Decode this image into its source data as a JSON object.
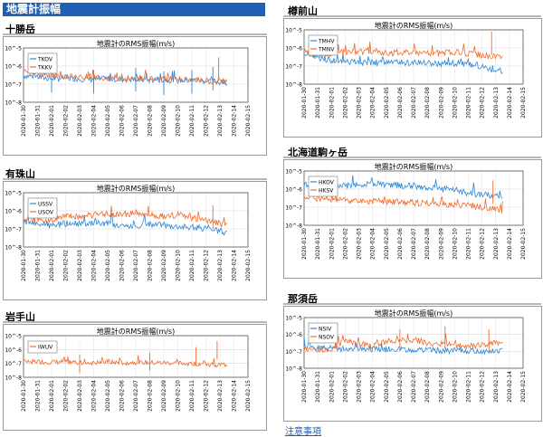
{
  "page": {
    "title": "地震計振幅",
    "note_link": "注意事項"
  },
  "colors": {
    "title_bg": "#1f5fb5",
    "series_a": "#2c86d8",
    "series_b": "#f26a2a"
  },
  "date_ticks": [
    "2020-01-30",
    "2020-01-31",
    "2020-02-01",
    "2020-02-02",
    "2020-02-03",
    "2020-02-04",
    "2020-02-05",
    "2020-02-06",
    "2020-02-07",
    "2020-02-08",
    "2020-02-09",
    "2020-02-10",
    "2020-02-11",
    "2020-02-12",
    "2020-02-13",
    "2020-02-14",
    "2020-02-15"
  ],
  "y_ticks": [
    "10^-5",
    "10^-6",
    "10^-7",
    "10^-8"
  ],
  "panels": [
    {
      "name": "十勝岳",
      "chart_title": "地震計のRMS振幅(m/s)",
      "legend": [
        "TKOV",
        "TKKV"
      ],
      "extra_a": true
    },
    {
      "name": "樽前山",
      "chart_title": "地震計のRMS振幅(m/s)",
      "legend": [
        "TMHV",
        "TMNV"
      ]
    },
    {
      "name": "有珠山",
      "chart_title": "地震計のRMS振幅(m/s)",
      "legend": [
        "USSV",
        "USOV"
      ]
    },
    {
      "name": "北海道駒ヶ岳",
      "chart_title": "地震計のRMS振幅(m/s)",
      "legend": [
        "HKOV",
        "HKSV"
      ]
    },
    {
      "name": "岩手山",
      "chart_title": "地震計のRMS振幅(m/s)",
      "legend": [
        "IWUV"
      ]
    },
    {
      "name": "那須岳",
      "chart_title": "地震計のRMS振幅(m/s)",
      "legend": [
        "NSIV",
        "NSOV"
      ]
    }
  ],
  "chart_data": [
    {
      "type": "line",
      "title": "地震計のRMS振幅(m/s)",
      "yscale": "log",
      "ylim": [
        1e-08,
        1e-05
      ],
      "xlim": [
        "2020-01-30",
        "2020-02-15"
      ],
      "series": [
        {
          "name": "TKOV",
          "values": [
            [
              0,
              3e-07
            ],
            [
              1,
              2.5e-07
            ],
            [
              2,
              2e-07
            ],
            [
              3,
              2.2e-07
            ],
            [
              4,
              2e-07
            ],
            [
              5,
              1.8e-07
            ],
            [
              6,
              2e-07
            ],
            [
              7,
              1.9e-07
            ],
            [
              8,
              1.8e-07
            ],
            [
              9,
              1.7e-07
            ],
            [
              10,
              1.8e-07
            ],
            [
              11,
              1.6e-07
            ],
            [
              12,
              1.7e-07
            ],
            [
              13,
              1.5e-07
            ],
            [
              14,
              1.3e-07
            ],
            [
              14.5,
              1.1e-07
            ]
          ],
          "spikes": [
            [
              2,
              7e-07
            ],
            [
              5,
              6e-07
            ],
            [
              8,
              8e-07
            ],
            [
              10,
              5e-07
            ],
            [
              12,
              6e-07
            ],
            [
              13.5,
              9e-07
            ]
          ]
        },
        {
          "name": "TKKV",
          "values": [
            [
              0,
              5e-07
            ],
            [
              1,
              4e-07
            ],
            [
              2,
              3e-07
            ],
            [
              3,
              3e-07
            ],
            [
              4,
              2.5e-07
            ],
            [
              5,
              2.5e-07
            ],
            [
              6,
              2.2e-07
            ],
            [
              7,
              2.2e-07
            ],
            [
              8,
              2e-07
            ],
            [
              9,
              2e-07
            ],
            [
              10,
              2e-07
            ],
            [
              11,
              1.8e-07
            ],
            [
              12,
              1.8e-07
            ],
            [
              13,
              1.6e-07
            ],
            [
              14,
              1.4e-07
            ],
            [
              14.5,
              1.3e-07
            ]
          ],
          "spikes": [
            [
              13.9,
              3e-06
            ]
          ]
        }
      ]
    },
    {
      "type": "line",
      "title": "地震計のRMS振幅(m/s)",
      "yscale": "log",
      "ylim": [
        1e-08,
        1e-05
      ],
      "xlim": [
        "2020-01-30",
        "2020-02-15"
      ],
      "series": [
        {
          "name": "TMHV",
          "values": [
            [
              0,
              5e-07
            ],
            [
              1,
              3e-07
            ],
            [
              2,
              2e-07
            ],
            [
              3,
              2e-07
            ],
            [
              4,
              1.5e-07
            ],
            [
              5,
              1.6e-07
            ],
            [
              6,
              1.6e-07
            ],
            [
              7,
              1.5e-07
            ],
            [
              8,
              1.5e-07
            ],
            [
              9,
              1.5e-07
            ],
            [
              10,
              1.4e-07
            ],
            [
              11,
              1.4e-07
            ],
            [
              12,
              1.3e-07
            ],
            [
              13,
              1e-07
            ],
            [
              14,
              6e-08
            ],
            [
              14.5,
              5e-08
            ]
          ],
          "spikes": []
        },
        {
          "name": "TMNV",
          "values": [
            [
              0,
              6e-07
            ],
            [
              1,
              4e-07
            ],
            [
              2,
              5e-07
            ],
            [
              3,
              6e-07
            ],
            [
              4,
              6e-07
            ],
            [
              5,
              7e-07
            ],
            [
              6,
              5e-07
            ],
            [
              7,
              6e-07
            ],
            [
              8,
              6e-07
            ],
            [
              9,
              5e-07
            ],
            [
              10,
              5e-07
            ],
            [
              11,
              6e-07
            ],
            [
              12,
              5e-07
            ],
            [
              13,
              4e-07
            ],
            [
              14,
              3e-07
            ],
            [
              14.5,
              3e-07
            ]
          ],
          "spikes": [
            [
              13.7,
              8e-06
            ]
          ]
        }
      ]
    },
    {
      "type": "line",
      "title": "地震計のRMS振幅(m/s)",
      "yscale": "log",
      "ylim": [
        1e-08,
        1e-05
      ],
      "xlim": [
        "2020-01-30",
        "2020-02-15"
      ],
      "series": [
        {
          "name": "USSV",
          "values": [
            [
              0,
              2.5e-07
            ],
            [
              1,
              2e-07
            ],
            [
              2,
              1.5e-07
            ],
            [
              3,
              2e-07
            ],
            [
              4,
              1.8e-07
            ],
            [
              5,
              2.2e-07
            ],
            [
              6,
              2e-07
            ],
            [
              7,
              1.5e-07
            ],
            [
              8,
              1.5e-07
            ],
            [
              9,
              1.8e-07
            ],
            [
              10,
              1.6e-07
            ],
            [
              11,
              1.5e-07
            ],
            [
              12,
              1.2e-07
            ],
            [
              13,
              1e-07
            ],
            [
              14,
              8e-08
            ],
            [
              14.5,
              5e-08
            ]
          ],
          "spikes": []
        },
        {
          "name": "USOV",
          "values": [
            [
              0,
              4e-07
            ],
            [
              1,
              3e-07
            ],
            [
              2,
              3e-07
            ],
            [
              3,
              5e-07
            ],
            [
              4,
              5e-07
            ],
            [
              5,
              6e-07
            ],
            [
              6,
              7e-07
            ],
            [
              7,
              6e-07
            ],
            [
              8,
              8e-07
            ],
            [
              9,
              6e-07
            ],
            [
              10,
              5e-07
            ],
            [
              11,
              6e-07
            ],
            [
              12,
              4e-07
            ],
            [
              13,
              3e-07
            ],
            [
              14,
              2e-07
            ],
            [
              14.5,
              1.5e-07
            ]
          ],
          "spikes": [
            [
              13.5,
              2e-06
            ]
          ]
        }
      ]
    },
    {
      "type": "line",
      "title": "地震計のRMS振幅(m/s)",
      "yscale": "log",
      "ylim": [
        1e-08,
        1e-05
      ],
      "xlim": [
        "2020-01-30",
        "2020-02-15"
      ],
      "series": [
        {
          "name": "HKOV",
          "values": [
            [
              0,
              2e-06
            ],
            [
              1,
              1.5e-06
            ],
            [
              2,
              1.4e-06
            ],
            [
              3,
              1.5e-06
            ],
            [
              4,
              1.8e-06
            ],
            [
              5,
              2e-06
            ],
            [
              6,
              1.8e-06
            ],
            [
              7,
              1.6e-06
            ],
            [
              8,
              1.4e-06
            ],
            [
              9,
              1.2e-06
            ],
            [
              10,
              1e-06
            ],
            [
              11,
              9e-07
            ],
            [
              12,
              6e-07
            ],
            [
              13,
              5e-07
            ],
            [
              14,
              4e-07
            ],
            [
              14.5,
              3e-07
            ]
          ],
          "spikes": []
        },
        {
          "name": "HKSV",
          "values": [
            [
              0,
              4e-07
            ],
            [
              1,
              3e-07
            ],
            [
              2,
              2.5e-07
            ],
            [
              3,
              2.5e-07
            ],
            [
              4,
              2e-07
            ],
            [
              5,
              2.2e-07
            ],
            [
              6,
              2e-07
            ],
            [
              7,
              1.8e-07
            ],
            [
              8,
              1.8e-07
            ],
            [
              9,
              1.6e-07
            ],
            [
              10,
              1.5e-07
            ],
            [
              11,
              1.4e-07
            ],
            [
              12,
              1.3e-07
            ],
            [
              13,
              1e-07
            ],
            [
              14,
              8e-08
            ],
            [
              14.5,
              6e-08
            ]
          ],
          "spikes": [
            [
              13.8,
              3e-06
            ]
          ]
        }
      ]
    },
    {
      "type": "line",
      "title": "地震計のRMS振幅(m/s)",
      "yscale": "log",
      "ylim": [
        1e-08,
        1e-05
      ],
      "xlim": [
        "2020-01-30",
        "2020-02-15"
      ],
      "series": [
        {
          "name": "IWUV",
          "values": [
            [
              0,
              1.5e-07
            ],
            [
              1,
              1.3e-07
            ],
            [
              2,
              1.2e-07
            ],
            [
              3,
              1.3e-07
            ],
            [
              4,
              1.2e-07
            ],
            [
              5,
              1.1e-07
            ],
            [
              6,
              1.2e-07
            ],
            [
              7,
              1.1e-07
            ],
            [
              8,
              1.2e-07
            ],
            [
              9,
              1.1e-07
            ],
            [
              10,
              1.1e-07
            ],
            [
              11,
              1e-07
            ],
            [
              12,
              1e-07
            ],
            [
              13,
              9e-08
            ],
            [
              14,
              8e-08
            ],
            [
              14.5,
              8e-08
            ]
          ],
          "spikes": [
            [
              4,
              4e-07
            ],
            [
              9,
              6e-07
            ],
            [
              12.3,
              1.5e-06
            ],
            [
              13.8,
              4e-06
            ]
          ]
        }
      ]
    },
    {
      "type": "line",
      "title": "地震計のRMS振幅(m/s)",
      "yscale": "log",
      "ylim": [
        1e-08,
        1e-05
      ],
      "xlim": [
        "2020-01-30",
        "2020-02-15"
      ],
      "series": [
        {
          "name": "NSIV",
          "values": [
            [
              0,
              2e-07
            ],
            [
              1,
              1.8e-07
            ],
            [
              2,
              1.5e-07
            ],
            [
              3,
              1.4e-07
            ],
            [
              4,
              1.5e-07
            ],
            [
              5,
              1.4e-07
            ],
            [
              6,
              1.3e-07
            ],
            [
              7,
              1.3e-07
            ],
            [
              8,
              1.2e-07
            ],
            [
              9,
              1.2e-07
            ],
            [
              10,
              1.1e-07
            ],
            [
              11,
              1.1e-07
            ],
            [
              12,
              1.1e-07
            ],
            [
              13,
              1e-07
            ],
            [
              14,
              1e-07
            ],
            [
              14.5,
              1.2e-07
            ]
          ],
          "spikes": []
        },
        {
          "name": "NSOV",
          "values": [
            [
              0,
              1.5e-07
            ],
            [
              1,
              1.2e-07
            ],
            [
              2,
              1.5e-07
            ],
            [
              3,
              4e-07
            ],
            [
              4,
              3e-07
            ],
            [
              5,
              2e-07
            ],
            [
              6,
              4e-07
            ],
            [
              7,
              5e-07
            ],
            [
              8,
              4e-07
            ],
            [
              9,
              3e-07
            ],
            [
              10,
              3e-07
            ],
            [
              11,
              2.5e-07
            ],
            [
              12,
              2e-07
            ],
            [
              13,
              2.5e-07
            ],
            [
              14,
              3e-07
            ],
            [
              14.5,
              4e-07
            ]
          ],
          "spikes": [
            [
              2.3,
              3e-06
            ],
            [
              7,
              2e-06
            ],
            [
              10.3,
              3e-06
            ],
            [
              13.5,
              2e-06
            ]
          ]
        }
      ]
    }
  ]
}
